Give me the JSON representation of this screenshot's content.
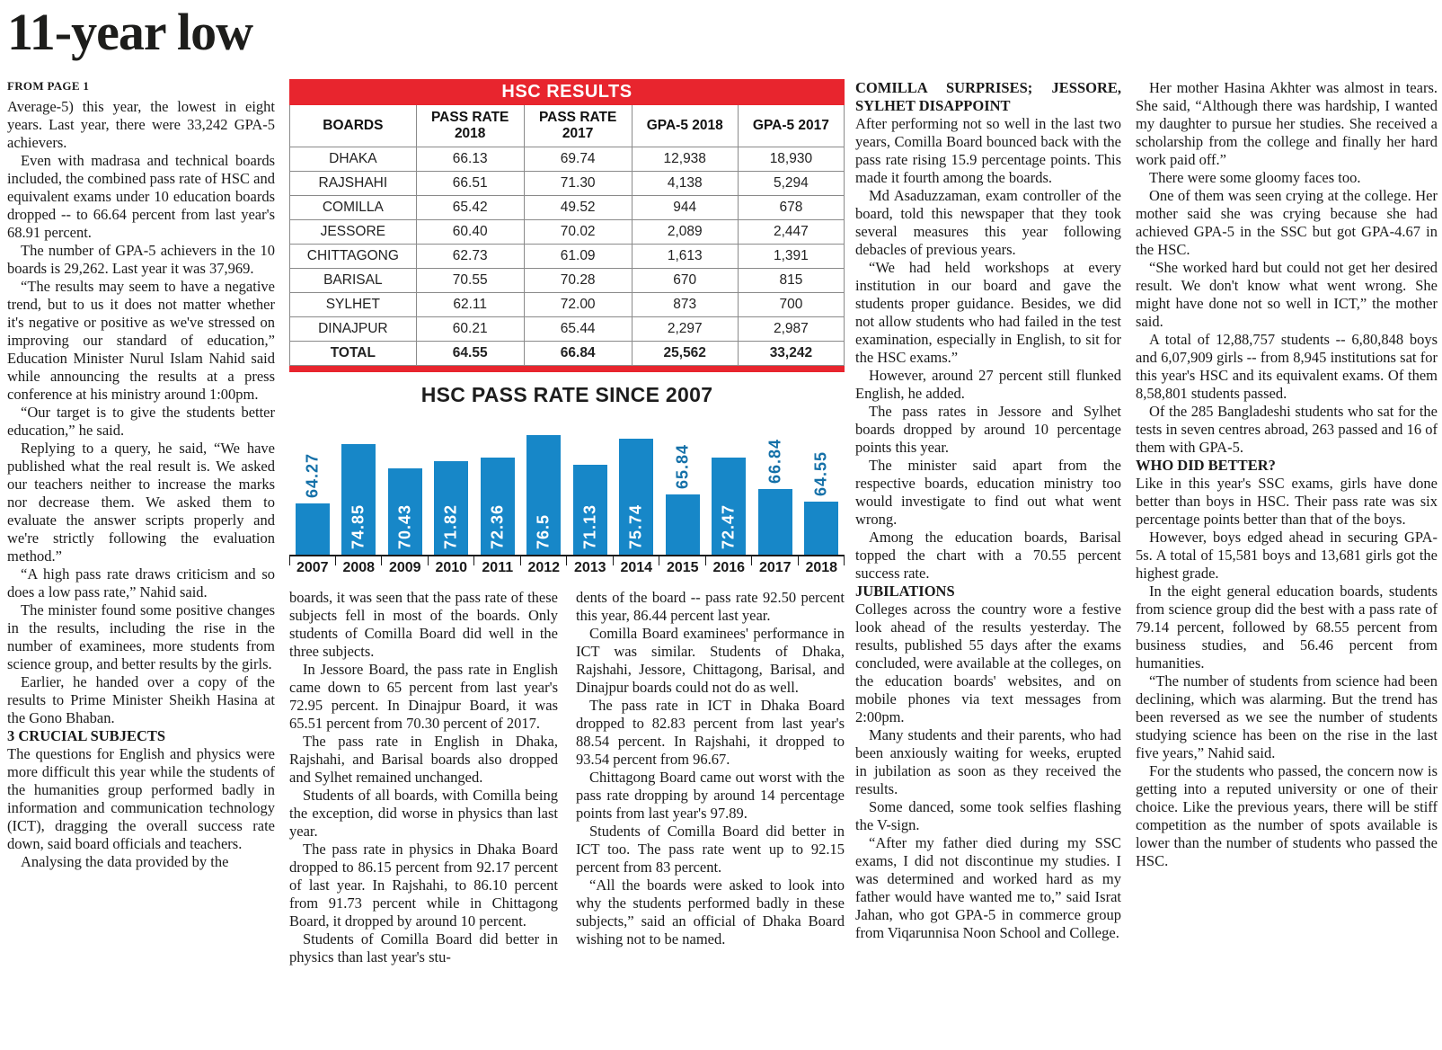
{
  "masthead": {
    "headline": "11-year low",
    "from_page": "FROM PAGE 1"
  },
  "table": {
    "title": "HSC RESULTS",
    "headers": [
      [
        "BOARDS"
      ],
      [
        "PASS RATE",
        "2018"
      ],
      [
        "PASS RATE",
        "2017"
      ],
      [
        "GPA-5 2018"
      ],
      [
        "GPA-5 2017"
      ]
    ],
    "rows": [
      [
        "DHAKA",
        "66.13",
        "69.74",
        "12,938",
        "18,930"
      ],
      [
        "RAJSHAHI",
        "66.51",
        "71.30",
        "4,138",
        "5,294"
      ],
      [
        "COMILLA",
        "65.42",
        "49.52",
        "944",
        "678"
      ],
      [
        "JESSORE",
        "60.40",
        "70.02",
        "2,089",
        "2,447"
      ],
      [
        "CHITTAGONG",
        "62.73",
        "61.09",
        "1,613",
        "1,391"
      ],
      [
        "BARISAL",
        "70.55",
        "70.28",
        "670",
        "815"
      ],
      [
        "SYLHET",
        "62.11",
        "72.00",
        "873",
        "700"
      ],
      [
        "DINAJPUR",
        "60.21",
        "65.44",
        "2,297",
        "2,987"
      ]
    ],
    "total_row": [
      "TOTAL",
      "64.55",
      "66.84",
      "25,562",
      "33,242"
    ]
  },
  "chart_data": {
    "type": "bar",
    "title": "HSC PASS RATE SINCE 2007",
    "categories": [
      "2007",
      "2008",
      "2009",
      "2010",
      "2011",
      "2012",
      "2013",
      "2014",
      "2015",
      "2016",
      "2017",
      "2018"
    ],
    "values": [
      64.27,
      74.85,
      70.43,
      71.82,
      72.36,
      76.5,
      71.13,
      75.74,
      65.84,
      72.47,
      66.84,
      64.55
    ],
    "xlabel": "",
    "ylabel": "",
    "ylim": [
      55,
      80
    ],
    "grid": false,
    "legend": false,
    "bar_color": "#1787c8",
    "value_labels": "rotated-vertical"
  },
  "colors": {
    "accent_red": "#e8252e",
    "bar_blue": "#1787c8",
    "text": "#1a1a1a"
  },
  "columns": {
    "col1": [
      {
        "flush": true,
        "text": "Average-5) this year, the lowest in eight years. Last year, there were 33,242 GPA-5 achievers."
      },
      {
        "text": "Even with madrasa and technical boards included, the combined pass rate of HSC and equivalent exams under 10 education boards dropped -- to 66.64 percent from last year's 68.91 percent."
      },
      {
        "text": "The number of GPA-5 achievers in the 10 boards is 29,262. Last year it was 37,969."
      },
      {
        "text": "“The results may seem to have a negative trend, but to us it does not matter whether it's negative or positive as we've stressed on improving our standard of education,” Education Minister Nurul Islam Nahid said while announcing the results at a press conference at his ministry around 1:00pm."
      },
      {
        "text": "“Our target is to give the students better education,” he said."
      },
      {
        "text": "Replying to a query, he said, “We have published what the real result is. We asked our teachers neither to increase the marks nor decrease them. We asked them to evaluate the answer scripts properly and we're strictly following the evaluation method.”"
      },
      {
        "text": "“A high pass rate draws criticism and so does a low pass rate,” Nahid said."
      },
      {
        "text": "The minister found some positive changes in the results, including the rise in the number of examinees, more students from science group, and better results by the girls."
      },
      {
        "text": "Earlier, he handed over a copy of the results to Prime Minister Sheikh Hasina at the Gono Bhaban."
      },
      {
        "h": true,
        "text": "3 CRUCIAL SUBJECTS"
      },
      {
        "flush": true,
        "text": "The questions for English and physics were more difficult this year while the students of the humanities group performed badly in information and communication technology (ICT), dragging the overall success rate down, said board officials and teachers."
      },
      {
        "text": "Analysing the data provided by the"
      }
    ],
    "col2": [
      {
        "flush": true,
        "text": "boards, it was seen that the pass rate of these subjects fell in most of the boards. Only students of Comilla Board did well in the three subjects."
      },
      {
        "text": "In Jessore Board, the pass rate in English came down to 65 percent from last year's 72.95 percent. In Dinajpur Board, it was 65.51 percent from 70.30 percent of 2017."
      },
      {
        "text": "The pass rate in English in Dhaka, Rajshahi, and Barisal boards also dropped and Sylhet remained unchanged."
      },
      {
        "text": "Students of all boards, with Comilla being the exception, did worse in physics than last year."
      },
      {
        "text": "The pass rate in physics in Dhaka Board dropped to 86.15 percent from 92.17 percent of last year. In Rajshahi, to 86.10 percent from 91.73 percent while in Chittagong Board, it dropped by around 10 percent."
      },
      {
        "text": "Students of Comilla Board did better in physics than last year's stu-"
      }
    ],
    "col3": [
      {
        "flush": true,
        "text": "dents of the board -- pass rate 92.50 percent this year, 86.44 percent last year."
      },
      {
        "text": "Comilla Board examinees' performance in ICT was similar. Students of Dhaka, Rajshahi, Jessore, Chittagong, Barisal, and Dinajpur boards could not do as well."
      },
      {
        "text": "The pass rate in ICT in Dhaka Board dropped to 82.83 percent from last year's 88.54 percent. In Rajshahi, it dropped to 93.54 percent from 96.67."
      },
      {
        "text": "Chittagong Board came out worst with the pass rate dropping by around 14 percentage points from last year's 97.89."
      },
      {
        "text": "Students of Comilla Board did better in ICT too. The pass rate went up to 92.15 percent from 83 percent."
      },
      {
        "text": "“All the boards were asked to look into why the students performed badly in these subjects,” said an official of Dhaka Board wishing not to be named."
      }
    ],
    "col4": [
      {
        "h": true,
        "text": "COMILLA SURPRISES; JESSORE, SYLHET DISAPPOINT"
      },
      {
        "flush": true,
        "text": "After performing not so well in the last two years, Comilla Board bounced back with the pass rate rising 15.9 percentage points. This made it fourth among the boards."
      },
      {
        "text": "Md Asaduzzaman, exam controller of the board, told this newspaper that they took several measures this year following debacles of previous years."
      },
      {
        "text": "“We had held workshops at every institution in our board and gave the students proper guidance. Besides, we did not allow students who had failed in the test examination, especially in English, to sit for the HSC exams.”"
      },
      {
        "text": "However, around 27 percent still flunked English, he added."
      },
      {
        "text": "The pass rates in Jessore and Sylhet boards dropped by around 10 percentage points this year."
      },
      {
        "text": "The minister said apart from the respective boards, education ministry too would investigate to find out what went wrong."
      },
      {
        "text": "Among the education boards, Barisal topped the chart with a 70.55 percent success rate."
      },
      {
        "h": true,
        "text": "JUBILATIONS"
      },
      {
        "flush": true,
        "text": "Colleges across the country wore a festive look ahead of the results yesterday. The results, published 55 days after the exams concluded, were available at the colleges, on the education boards' websites, and on mobile phones via text messages from 2:00pm."
      },
      {
        "text": "Many students and their parents, who had been anxiously waiting for weeks, erupted in jubilation as soon as they received the results."
      },
      {
        "text": "Some danced, some took selfies flashing the V-sign."
      },
      {
        "text": "“After my father died during my SSC exams, I did not discontinue my studies. I was determined and worked hard as my father would have wanted me to,” said Israt Jahan, who got GPA-5 in commerce group from Viqarunnisa Noon School and College."
      }
    ],
    "col5": [
      {
        "text": "Her mother Hasina Akhter was almost in tears. She said, “Although there was hardship, I wanted my daughter to pursue her studies. She received a scholarship from the college and finally her hard work paid off.”"
      },
      {
        "text": "There were some gloomy faces too."
      },
      {
        "text": "One of them was seen crying at the college. Her mother said she was crying because she had achieved GPA-5 in the SSC but got GPA-4.67 in the HSC."
      },
      {
        "text": "“She worked hard but could not get her desired result. We don't know what went wrong. She might have done not so well in ICT,” the mother said."
      },
      {
        "text": "A total of 12,88,757 students -- 6,80,848 boys and 6,07,909 girls -- from 8,945 institutions sat for this year's HSC and its equivalent exams. Of them 8,58,801 students passed."
      },
      {
        "text": "Of the 285 Bangladeshi students who sat for the tests in seven centres abroad, 263 passed and 16 of them with GPA-5."
      },
      {
        "h": true,
        "text": "WHO DID BETTER?"
      },
      {
        "flush": true,
        "text": "Like in this year's SSC exams, girls have done better than boys in HSC. Their pass rate was six percentage points better than that of the boys."
      },
      {
        "text": "However, boys edged ahead in securing GPA-5s. A total of 15,581 boys and 13,681 girls got the highest grade."
      },
      {
        "text": "In the eight general education boards, students from science group did the best with a pass rate of 79.14 percent, followed by 68.55 percent from business studies, and 56.46 percent from humanities."
      },
      {
        "text": "“The number of students from science had been declining, which was alarming. But the trend has been reversed as we see the number of students studying science has been on the rise in the last five years,” Nahid said."
      },
      {
        "text": "For the students who passed, the concern now is getting into a reputed university or one of their choice. Like the previous years, there will be stiff competition as the number of spots available is lower than the number of students who passed the HSC."
      }
    ]
  }
}
